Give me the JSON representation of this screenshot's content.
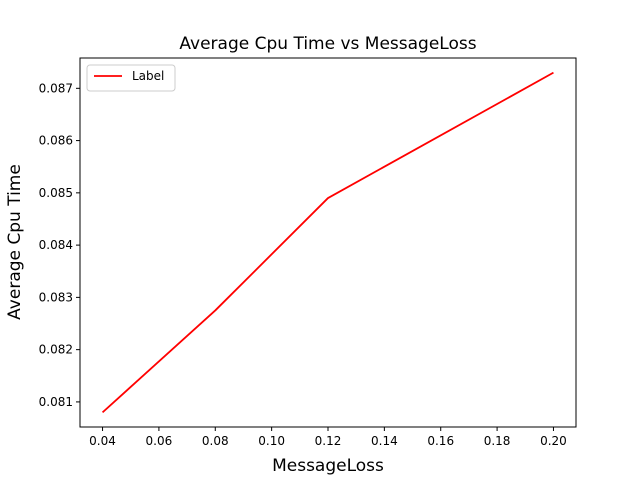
{
  "chart_data": {
    "type": "line",
    "title": "Average Cpu Time vs MessageLoss",
    "xlabel": "MessageLoss",
    "ylabel": "Average Cpu Time",
    "x": [
      0.04,
      0.08,
      0.12,
      0.2
    ],
    "series": [
      {
        "name": "Label",
        "color": "#ff0000",
        "values": [
          0.0808,
          0.08275,
          0.0849,
          0.0873
        ]
      }
    ],
    "xlim": [
      0.032,
      0.208
    ],
    "ylim": [
      0.08052,
      0.08758
    ],
    "xticks": [
      0.04,
      0.06,
      0.08,
      0.1,
      0.12,
      0.14,
      0.16,
      0.18,
      0.2
    ],
    "xtick_labels": [
      "0.04",
      "0.06",
      "0.08",
      "0.10",
      "0.12",
      "0.14",
      "0.16",
      "0.18",
      "0.20"
    ],
    "yticks": [
      0.081,
      0.082,
      0.083,
      0.084,
      0.085,
      0.086,
      0.087
    ],
    "ytick_labels": [
      "0.081",
      "0.082",
      "0.083",
      "0.084",
      "0.085",
      "0.086",
      "0.087"
    ],
    "grid": false,
    "legend_position": "upper-left"
  }
}
